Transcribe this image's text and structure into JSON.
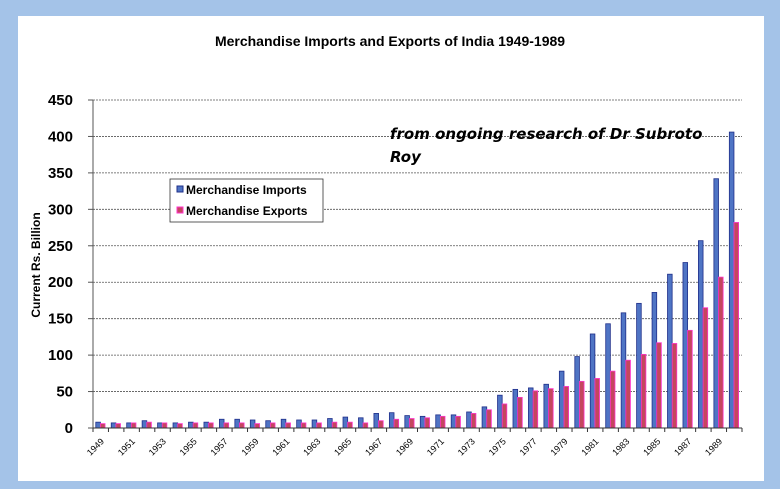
{
  "chart_data": {
    "type": "bar",
    "title": "Merchandise Imports and Exports of India 1949-1989",
    "xlabel": "",
    "ylabel": "Current Rs. Billion",
    "ylim": [
      0,
      450
    ],
    "yticks": [
      0,
      50,
      100,
      150,
      200,
      250,
      300,
      350,
      400,
      450
    ],
    "grid": true,
    "legend_position": "upper-left",
    "annotation": [
      "from ongoing research of Dr Subroto",
      "Roy"
    ],
    "categories": [
      "1949",
      "1950",
      "1951",
      "1952",
      "1953",
      "1954",
      "1955",
      "1956",
      "1957",
      "1958",
      "1959",
      "1960",
      "1961",
      "1962",
      "1963",
      "1964",
      "1965",
      "1966",
      "1967",
      "1968",
      "1969",
      "1970",
      "1971",
      "1972",
      "1973",
      "1974",
      "1975",
      "1976",
      "1977",
      "1978",
      "1979",
      "1980",
      "1981",
      "1982",
      "1983",
      "1984",
      "1985",
      "1986",
      "1987",
      "1988",
      "1989",
      "1990"
    ],
    "xtick_labels": [
      "1949",
      "1951",
      "1953",
      "1955",
      "1957",
      "1959",
      "1961",
      "1963",
      "1965",
      "1967",
      "1969",
      "1971",
      "1973",
      "1975",
      "1977",
      "1979",
      "1981",
      "1983",
      "1985",
      "1987",
      "1989"
    ],
    "series": [
      {
        "name": "Merchandise Imports",
        "color": "#4f74c4",
        "edge": "#1f2f8a",
        "values": [
          8,
          7,
          7,
          10,
          7,
          7,
          8,
          8,
          12,
          12,
          11,
          10,
          12,
          11,
          11,
          13,
          15,
          14,
          20,
          21,
          17,
          16,
          18,
          18,
          22,
          29,
          45,
          53,
          55,
          60,
          78,
          98,
          129,
          143,
          158,
          171,
          186,
          211,
          227,
          257,
          342,
          406
        ]
      },
      {
        "name": "Merchandise Exports",
        "color": "#c4475e",
        "edge": "#ff33cc",
        "values": [
          6,
          6,
          7,
          8,
          7,
          6,
          7,
          7,
          7,
          7,
          6,
          7,
          7,
          7,
          7,
          8,
          8,
          7,
          10,
          12,
          13,
          14,
          16,
          16,
          20,
          25,
          33,
          42,
          51,
          54,
          57,
          64,
          68,
          78,
          93,
          101,
          117,
          116,
          134,
          165,
          207,
          282
        ]
      }
    ]
  }
}
